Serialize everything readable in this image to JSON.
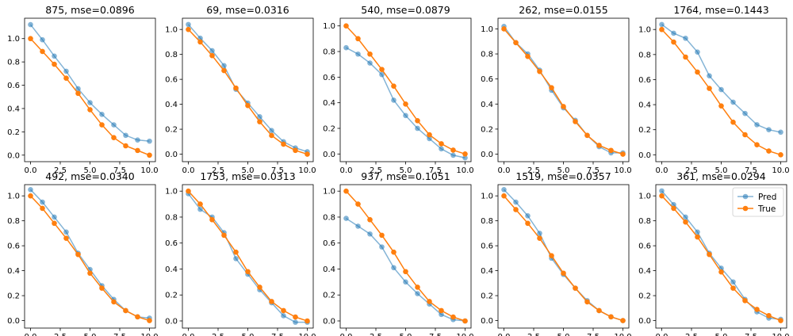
{
  "chart_data": {
    "type": "line",
    "grid": false,
    "legend_position": "top-right",
    "legend_panel_index": 9,
    "colors": {
      "pred": "#1f77b4",
      "true": "#ff7f0e"
    },
    "x": [
      0,
      1,
      2,
      3,
      4,
      5,
      6,
      7,
      8,
      9,
      10
    ],
    "x_ticks": [
      0.0,
      2.5,
      5.0,
      7.5,
      10.0
    ],
    "x_tick_labels": [
      "0.0",
      "2.5",
      "5.0",
      "7.5",
      "10.0"
    ],
    "xlim": [
      -0.5,
      10.5
    ],
    "series_names": [
      "Pred",
      "True"
    ],
    "panels": [
      {
        "title": "875, mse=0.0896",
        "ylim": [
          -0.056,
          1.175
        ],
        "y_ticks": [
          0.0,
          0.2,
          0.4,
          0.6,
          0.8,
          1.0
        ],
        "y_tick_labels": [
          "0.0",
          "0.2",
          "0.4",
          "0.6",
          "0.8",
          "1.0"
        ],
        "pred": [
          1.12,
          0.99,
          0.85,
          0.72,
          0.57,
          0.45,
          0.35,
          0.26,
          0.17,
          0.13,
          0.12
        ],
        "true": [
          1.0,
          0.89,
          0.78,
          0.66,
          0.53,
          0.39,
          0.26,
          0.15,
          0.08,
          0.04,
          0.0
        ]
      },
      {
        "title": "69, mse=0.0316",
        "ylim": [
          -0.06,
          1.09
        ],
        "y_ticks": [
          0.0,
          0.2,
          0.4,
          0.6,
          0.8,
          1.0
        ],
        "y_tick_labels": [
          "0.0",
          "0.2",
          "0.4",
          "0.6",
          "0.8",
          "1.0"
        ],
        "pred": [
          1.04,
          0.93,
          0.83,
          0.71,
          0.52,
          0.41,
          0.3,
          0.19,
          0.1,
          0.05,
          0.02
        ],
        "true": [
          1.0,
          0.9,
          0.79,
          0.67,
          0.53,
          0.39,
          0.26,
          0.15,
          0.08,
          0.03,
          0.0
        ]
      },
      {
        "title": "540, mse=0.0879",
        "ylim": [
          -0.06,
          1.06
        ],
        "y_ticks": [
          0.0,
          0.2,
          0.4,
          0.6,
          0.8,
          1.0
        ],
        "y_tick_labels": [
          "0.0",
          "0.2",
          "0.4",
          "0.6",
          "0.8",
          "1.0"
        ],
        "pred": [
          0.83,
          0.78,
          0.71,
          0.62,
          0.42,
          0.3,
          0.2,
          0.12,
          0.04,
          -0.01,
          -0.03
        ],
        "true": [
          1.0,
          0.9,
          0.78,
          0.66,
          0.53,
          0.39,
          0.26,
          0.15,
          0.08,
          0.03,
          0.0
        ]
      },
      {
        "title": "262, mse=0.0155",
        "ylim": [
          -0.06,
          1.085
        ],
        "y_ticks": [
          0.0,
          0.2,
          0.4,
          0.6,
          0.8,
          1.0
        ],
        "y_tick_labels": [
          "0.0",
          "0.2",
          "0.4",
          "0.6",
          "0.8",
          "1.0"
        ],
        "pred": [
          1.02,
          0.89,
          0.8,
          0.67,
          0.51,
          0.37,
          0.27,
          0.15,
          0.06,
          0.01,
          0.01
        ],
        "true": [
          1.0,
          0.89,
          0.78,
          0.66,
          0.53,
          0.38,
          0.26,
          0.15,
          0.07,
          0.03,
          0.0
        ]
      },
      {
        "title": "1764, mse=0.1443",
        "ylim": [
          -0.055,
          1.09
        ],
        "y_ticks": [
          0.0,
          0.2,
          0.4,
          0.6,
          0.8,
          1.0
        ],
        "y_tick_labels": [
          "0.0",
          "0.2",
          "0.4",
          "0.6",
          "0.8",
          "1.0"
        ],
        "pred": [
          1.04,
          0.97,
          0.93,
          0.82,
          0.63,
          0.52,
          0.42,
          0.33,
          0.24,
          0.2,
          0.18
        ],
        "true": [
          1.0,
          0.9,
          0.78,
          0.66,
          0.53,
          0.39,
          0.26,
          0.16,
          0.08,
          0.03,
          0.0
        ]
      },
      {
        "title": "492, mse=0.0340",
        "ylim": [
          -0.06,
          1.09
        ],
        "y_ticks": [
          0.0,
          0.2,
          0.4,
          0.6,
          0.8,
          1.0
        ],
        "y_tick_labels": [
          "0.0",
          "0.2",
          "0.4",
          "0.6",
          "0.8",
          "1.0"
        ],
        "pred": [
          1.05,
          0.95,
          0.83,
          0.71,
          0.54,
          0.41,
          0.28,
          0.17,
          0.08,
          0.03,
          0.02
        ],
        "true": [
          1.0,
          0.9,
          0.78,
          0.66,
          0.53,
          0.38,
          0.26,
          0.15,
          0.08,
          0.03,
          0.0
        ]
      },
      {
        "title": "1753, mse=0.0313",
        "ylim": [
          -0.055,
          1.05
        ],
        "y_ticks": [
          0.0,
          0.2,
          0.4,
          0.6,
          0.8,
          1.0
        ],
        "y_tick_labels": [
          "0.0",
          "0.2",
          "0.4",
          "0.6",
          "0.8",
          "1.0"
        ],
        "pred": [
          0.98,
          0.86,
          0.8,
          0.68,
          0.48,
          0.36,
          0.24,
          0.14,
          0.04,
          -0.01,
          -0.01
        ],
        "true": [
          1.0,
          0.9,
          0.78,
          0.66,
          0.53,
          0.38,
          0.26,
          0.15,
          0.08,
          0.03,
          0.0
        ]
      },
      {
        "title": "937, mse=0.1051",
        "ylim": [
          -0.055,
          1.05
        ],
        "y_ticks": [
          0.0,
          0.2,
          0.4,
          0.6,
          0.8,
          1.0
        ],
        "y_tick_labels": [
          "0.0",
          "0.2",
          "0.4",
          "0.6",
          "0.8",
          "1.0"
        ],
        "pred": [
          0.79,
          0.73,
          0.67,
          0.57,
          0.41,
          0.3,
          0.21,
          0.13,
          0.05,
          0.01,
          0.0
        ],
        "true": [
          1.0,
          0.9,
          0.78,
          0.66,
          0.53,
          0.38,
          0.26,
          0.15,
          0.08,
          0.03,
          0.0
        ]
      },
      {
        "title": "1519, mse=0.0357",
        "ylim": [
          -0.06,
          1.09
        ],
        "y_ticks": [
          0.0,
          0.2,
          0.4,
          0.6,
          0.8,
          1.0
        ],
        "y_tick_labels": [
          "0.0",
          "0.2",
          "0.4",
          "0.6",
          "0.8",
          "1.0"
        ],
        "pred": [
          1.05,
          0.95,
          0.84,
          0.7,
          0.5,
          0.37,
          0.26,
          0.16,
          0.08,
          0.03,
          0.0
        ],
        "true": [
          1.0,
          0.89,
          0.78,
          0.66,
          0.52,
          0.38,
          0.26,
          0.15,
          0.08,
          0.03,
          0.0
        ]
      },
      {
        "title": "361, mse=0.0294",
        "ylim": [
          -0.06,
          1.09
        ],
        "y_ticks": [
          0.0,
          0.2,
          0.4,
          0.6,
          0.8,
          1.0
        ],
        "y_tick_labels": [
          "0.0",
          "0.2",
          "0.4",
          "0.6",
          "0.8",
          "1.0"
        ],
        "pred": [
          1.04,
          0.93,
          0.83,
          0.71,
          0.54,
          0.42,
          0.31,
          0.17,
          0.07,
          0.02,
          0.01
        ],
        "true": [
          1.0,
          0.9,
          0.79,
          0.67,
          0.53,
          0.39,
          0.26,
          0.16,
          0.09,
          0.04,
          0.0
        ]
      }
    ]
  }
}
